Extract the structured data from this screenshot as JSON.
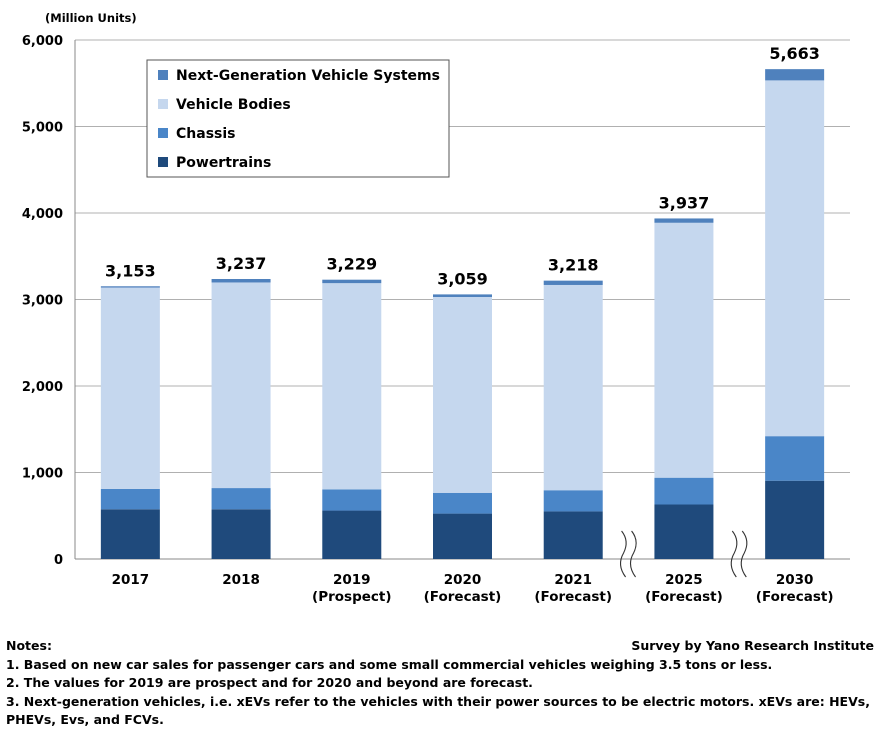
{
  "chart_data": {
    "type": "stacked-bar",
    "unit_label": "(Million Units)",
    "categories": [
      [
        "2017"
      ],
      [
        "2018"
      ],
      [
        "2019",
        "(Prospect)"
      ],
      [
        "2020",
        "(Forecast)"
      ],
      [
        "2021",
        "(Forecast)"
      ],
      [
        "2025",
        "(Forecast)"
      ],
      [
        "2030",
        "(Forecast)"
      ]
    ],
    "series": [
      {
        "name": "Powertrains",
        "color": "#1f4a7c",
        "values": [
          575,
          575,
          560,
          525,
          550,
          630,
          905
        ]
      },
      {
        "name": "Chassis",
        "color": "#4a86c8",
        "values": [
          235,
          245,
          245,
          240,
          245,
          310,
          515
        ]
      },
      {
        "name": "Vehicle Bodies",
        "color": "#c5d7ee",
        "values": [
          2328,
          2377,
          2384,
          2264,
          2373,
          2947,
          4113
        ]
      },
      {
        "name": "Next-Generation Vehicle Systems",
        "color": "#4f81bd",
        "values": [
          15,
          40,
          40,
          30,
          50,
          50,
          130
        ]
      }
    ],
    "totals": [
      "3,153",
      "3,237",
      "3,229",
      "3,059",
      "3,218",
      "3,937",
      "5,663"
    ],
    "ylim": [
      0,
      6000
    ],
    "yticks": [
      "0",
      "1,000",
      "2,000",
      "3,000",
      "4,000",
      "5,000",
      "6,000"
    ],
    "legend_order": [
      "Next-Generation Vehicle Systems",
      "Vehicle Bodies",
      "Chassis",
      "Powertrains"
    ],
    "legend_position": "top-left",
    "axis_break_after": [
      4,
      5
    ]
  },
  "notes": {
    "heading": "Notes:",
    "source": "Survey by Yano Research Institute",
    "lines": [
      "1. Based on new car sales for passenger cars and some small commercial vehicles weighing 3.5 tons or less.",
      "2. The values for 2019 are prospect and for 2020 and beyond are forecast.",
      "3. Next-generation vehicles, i.e. xEVs refer to the vehicles with their power sources to be electric motors. xEVs are: HEVs, PHEVs, Evs, and FCVs."
    ]
  }
}
